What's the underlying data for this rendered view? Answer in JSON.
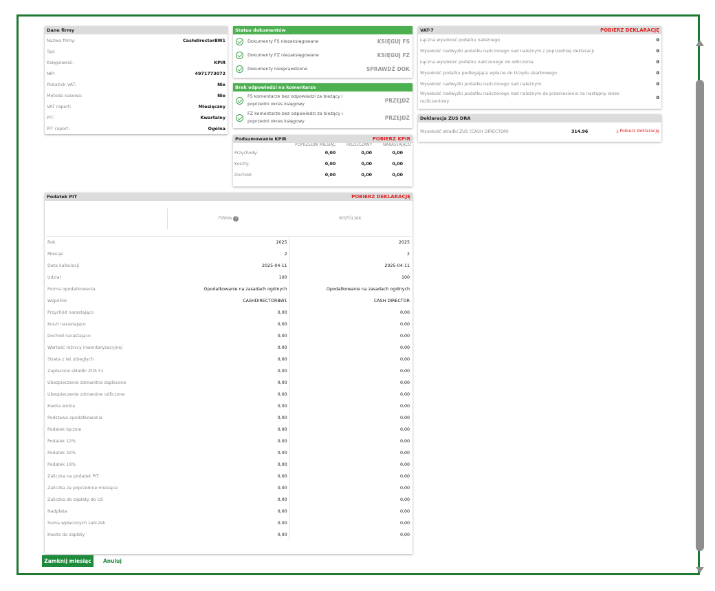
{
  "company": {
    "title": "Dane firmy",
    "rows": [
      {
        "label": "Nazwa firmy:",
        "value": "CashdirectorBW1"
      },
      {
        "label": "Typ:",
        "value": ""
      },
      {
        "label": "Księgowość:",
        "value": "KPiR"
      },
      {
        "label": "NIP:",
        "value": "4971773072"
      },
      {
        "label": "Podatnik VAT:",
        "value": "Nie"
      },
      {
        "label": "Metoda kasowa:",
        "value": "Nie"
      },
      {
        "label": "VAT raport:",
        "value": "Miesięczny"
      },
      {
        "label": "PIT:",
        "value": "Kwartalny"
      },
      {
        "label": "PIT raport:",
        "value": "Ogólna"
      }
    ]
  },
  "doc_status": {
    "title": "Status dokumentów",
    "items": [
      {
        "label": "Dokumenty FS niezaksięgowane",
        "action": "KSIĘGUJ FS"
      },
      {
        "label": "Dokumenty FZ niezaksięgowane",
        "action": "KSIĘGUJ FZ"
      },
      {
        "label": "Dokumenty niesprawdzone",
        "action": "SPRAWDŹ DOK"
      }
    ]
  },
  "comments": {
    "title": "Brak odpowiedzi na komentarze",
    "items": [
      {
        "line1": "FS komentarze bez odpowiedzi za bieżący i",
        "line2": "poprzedni okres księgowy",
        "action": "PRZEJDŹ"
      },
      {
        "line1": "FZ komentarze bez odpowiedzi za bieżący i",
        "line2": "poprzedni okres księgowy",
        "action": "PRZEJDŹ"
      }
    ]
  },
  "kpir": {
    "title": "Podsumowanie KPiR",
    "link": "POBIERZ KPIR",
    "columns": [
      "POPRZEDNI MIESIĄC",
      "ROZLICZANY",
      "NARASTAJĄCO"
    ],
    "rows": [
      {
        "label": "Przychody:",
        "v1": "0,00",
        "v2": "0,00",
        "v3": "0,00"
      },
      {
        "label": "Koszty:",
        "v1": "0,00",
        "v2": "0,00",
        "v3": "0,00"
      },
      {
        "label": "Dochód:",
        "v1": "0,00",
        "v2": "0,00",
        "v3": "0,00"
      }
    ]
  },
  "vat": {
    "title": "VAT-7",
    "link": "POBIERZ DEKLARACJĘ",
    "rows": [
      {
        "label": "Łączna wysokość podatku należnego",
        "value": "0"
      },
      {
        "label": "Wysokość nadwyżki podatku naliczonego nad należnym z poprzedniej deklaracji",
        "value": "0"
      },
      {
        "label": "Łączna wysokość podatku naliczonego do odliczenia",
        "value": "0"
      },
      {
        "label": "Wysokość podatku podlegająca wpłacie do Urzędu skarbowego",
        "value": "0"
      },
      {
        "label": "Wysokość nadwyżki podatku naliczonego nad należnym",
        "value": "0"
      },
      {
        "label": "Wysokość nadwyżki podatku naliczonego nad należnym do przeniesienia na następny okres rozliczeniowy",
        "value": "0"
      }
    ]
  },
  "zus": {
    "title": "Deklaracja ZUS DRA",
    "label": "Wysokość składki ZUS (CASH DIRECTOR)",
    "value": "314.96",
    "link": "Pobierz deklarację"
  },
  "pit": {
    "title": "Podatek PIT",
    "link": "POBIERZ DEKLARACJĘ",
    "col_firma": "FIRMA",
    "col_wspolnik": "WSPÓLNIK",
    "rows": [
      {
        "label": "Rok",
        "firma": "2025",
        "wspolnik": "2025"
      },
      {
        "label": "Miesiąc",
        "firma": "2",
        "wspolnik": "2"
      },
      {
        "label": "Data kalkulacji",
        "firma": "2025-04-11",
        "wspolnik": "2025-04-11"
      },
      {
        "label": "Udział",
        "firma": "100",
        "wspolnik": "100"
      },
      {
        "label": "Forma opodatkowania",
        "firma": "Opodatkowanie na zasadach ogólnych",
        "wspolnik": "Opodatkowanie na zasadach ogólnych"
      },
      {
        "label": "Wspólnik",
        "firma": "CASHDIRECTORBW1",
        "wspolnik": "CASH DIRECTOR"
      },
      {
        "label": "Przychód narastająco",
        "firma": "0,00",
        "wspolnik": "0,00"
      },
      {
        "label": "Koszt narastająco",
        "firma": "0,00",
        "wspolnik": "0,00"
      },
      {
        "label": "Dochód narastająco",
        "firma": "0,00",
        "wspolnik": "0,00"
      },
      {
        "label": "Wartość różnicy inwentaryzacyjnej",
        "firma": "0,00",
        "wspolnik": "0,00"
      },
      {
        "label": "Strata z lat ubiegłych",
        "firma": "0,00",
        "wspolnik": "0,00"
      },
      {
        "label": "Zapłacone składki ZUS 51",
        "firma": "0,00",
        "wspolnik": "0,00"
      },
      {
        "label": "Ubezpieczenie zdrowotne zapłacone",
        "firma": "0,00",
        "wspolnik": "0,00"
      },
      {
        "label": "Ubezpieczenie zdrowotne odliczone",
        "firma": "0,00",
        "wspolnik": "0,00"
      },
      {
        "label": "Kwota wolna",
        "firma": "0,00",
        "wspolnik": "0,00"
      },
      {
        "label": "Podstawa opodatkowania",
        "firma": "0,00",
        "wspolnik": "0,00"
      },
      {
        "label": "Podatek łącznie",
        "firma": "0,00",
        "wspolnik": "0,00"
      },
      {
        "label": "Podatek 12%",
        "firma": "0,00",
        "wspolnik": "0,00"
      },
      {
        "label": "Podatek 32%",
        "firma": "0,00",
        "wspolnik": "0,00"
      },
      {
        "label": "Podatek 19%",
        "firma": "0,00",
        "wspolnik": "0,00"
      },
      {
        "label": "Zaliczka na podatek PIT",
        "firma": "0,00",
        "wspolnik": "0,00"
      },
      {
        "label": "Zaliczka za poprzednie miesiące",
        "firma": "0,00",
        "wspolnik": "0,00"
      },
      {
        "label": "Zaliczka do zapłaty do US",
        "firma": "0,00",
        "wspolnik": "0,00"
      },
      {
        "label": "Nadpłata",
        "firma": "0,00",
        "wspolnik": "0,00"
      },
      {
        "label": "Suma wpłaconych zaliczek",
        "firma": "0,00",
        "wspolnik": "0,00"
      },
      {
        "label": "Kwota do zapłaty",
        "firma": "0,00",
        "wspolnik": "0,00"
      }
    ]
  },
  "footer": {
    "close_label": "Zamknij miesiąc",
    "cancel_label": "Anuluj"
  },
  "colors": {
    "accent": "#1e8a3c",
    "header_green": "#4caf50",
    "link_red": "#e02020"
  }
}
